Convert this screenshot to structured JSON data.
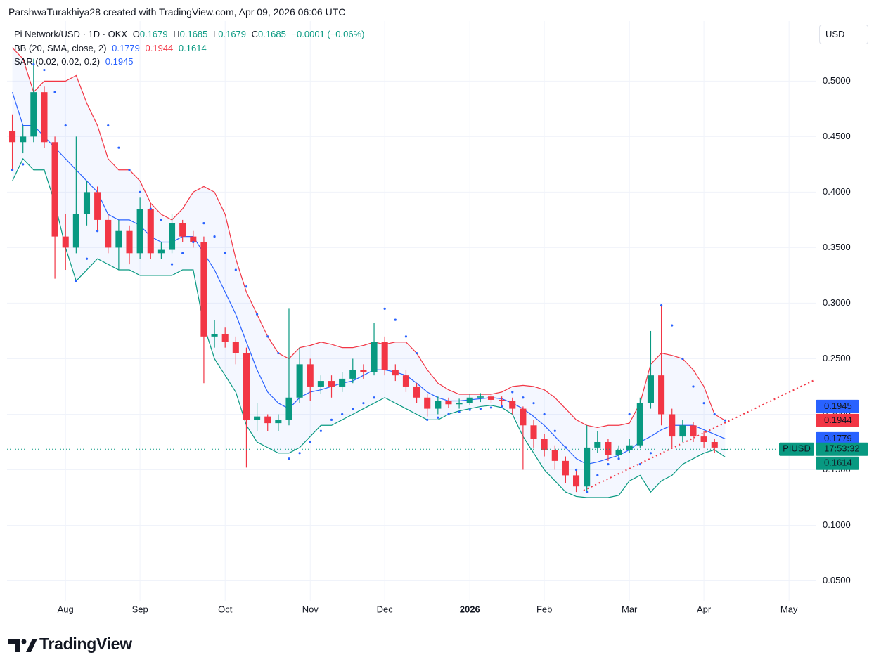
{
  "header": "ParshwaTurakhiya28 created with TradingView.com, Apr 09, 2026 06:06 UTC",
  "brand": "TradingView",
  "chart_data": {
    "type": "candlestick",
    "symbol": "Pi Network/USD · 1D · OKX",
    "ohlc_letters": [
      "O",
      "H",
      "L",
      "C"
    ],
    "change": "−0.0001 (−0.06%)",
    "currency": "USD",
    "ticker": "PIUSD",
    "countdown": "17:53:32",
    "categories": [
      null,
      null,
      null,
      null,
      null,
      "Aug",
      null,
      null,
      null,
      null,
      null,
      null,
      "Sep",
      null,
      null,
      null,
      null,
      null,
      null,
      null,
      "Oct",
      null,
      null,
      null,
      null,
      null,
      null,
      null,
      "Nov",
      null,
      null,
      null,
      null,
      null,
      null,
      "Dec",
      null,
      null,
      null,
      null,
      null,
      null,
      null,
      "2026",
      null,
      null,
      null,
      null,
      null,
      null,
      "Feb",
      null,
      null,
      null,
      null,
      null,
      null,
      null,
      "Mar",
      null,
      null,
      null,
      null,
      null,
      null,
      "Apr",
      null,
      null,
      null,
      null,
      null,
      null,
      null,
      "May",
      null,
      null
    ],
    "candles": {
      "up_color": "#089981",
      "down_color": "#f23645",
      "values": [
        [
          0.455,
          0.47,
          0.42,
          0.445
        ],
        [
          0.445,
          0.46,
          0.435,
          0.45
        ],
        [
          0.45,
          0.52,
          0.445,
          0.49
        ],
        [
          0.49,
          0.495,
          0.44,
          0.445
        ],
        [
          0.445,
          0.45,
          0.322,
          0.36
        ],
        [
          0.36,
          0.38,
          0.33,
          0.35
        ],
        [
          0.35,
          0.45,
          0.345,
          0.38
        ],
        [
          0.38,
          0.41,
          0.37,
          0.4
        ],
        [
          0.4,
          0.405,
          0.365,
          0.375
        ],
        [
          0.375,
          0.38,
          0.345,
          0.35
        ],
        [
          0.35,
          0.375,
          0.33,
          0.365
        ],
        [
          0.365,
          0.37,
          0.335,
          0.345
        ],
        [
          0.345,
          0.395,
          0.34,
          0.385
        ],
        [
          0.385,
          0.39,
          0.34,
          0.345
        ],
        [
          0.345,
          0.355,
          0.34,
          0.348
        ],
        [
          0.348,
          0.38,
          0.345,
          0.372
        ],
        [
          0.372,
          0.375,
          0.355,
          0.36
        ],
        [
          0.36,
          0.365,
          0.35,
          0.355
        ],
        [
          0.355,
          0.36,
          0.228,
          0.27
        ],
        [
          0.27,
          0.285,
          0.26,
          0.272
        ],
        [
          0.272,
          0.278,
          0.26,
          0.265
        ],
        [
          0.265,
          0.27,
          0.245,
          0.255
        ],
        [
          0.255,
          0.26,
          0.152,
          0.195
        ],
        [
          0.195,
          0.21,
          0.185,
          0.198
        ],
        [
          0.198,
          0.2,
          0.185,
          0.192
        ],
        [
          0.192,
          0.2,
          0.185,
          0.195
        ],
        [
          0.195,
          0.295,
          0.19,
          0.215
        ],
        [
          0.215,
          0.26,
          0.21,
          0.245
        ],
        [
          0.245,
          0.25,
          0.212,
          0.225
        ],
        [
          0.225,
          0.235,
          0.218,
          0.23
        ],
        [
          0.23,
          0.235,
          0.215,
          0.225
        ],
        [
          0.225,
          0.238,
          0.22,
          0.232
        ],
        [
          0.232,
          0.25,
          0.228,
          0.24
        ],
        [
          0.24,
          0.245,
          0.232,
          0.238
        ],
        [
          0.238,
          0.282,
          0.235,
          0.265
        ],
        [
          0.265,
          0.27,
          0.235,
          0.24
        ],
        [
          0.24,
          0.245,
          0.23,
          0.235
        ],
        [
          0.235,
          0.24,
          0.22,
          0.225
        ],
        [
          0.225,
          0.228,
          0.21,
          0.215
        ],
        [
          0.215,
          0.218,
          0.198,
          0.205
        ],
        [
          0.205,
          0.216,
          0.2,
          0.212
        ],
        [
          0.212,
          0.215,
          0.206,
          0.209
        ],
        [
          0.209,
          0.214,
          0.205,
          0.21
        ],
        [
          0.21,
          0.218,
          0.208,
          0.215
        ],
        [
          0.215,
          0.219,
          0.211,
          0.216
        ],
        [
          0.216,
          0.218,
          0.21,
          0.213
        ],
        [
          0.213,
          0.216,
          0.208,
          0.212
        ],
        [
          0.212,
          0.215,
          0.2,
          0.205
        ],
        [
          0.205,
          0.207,
          0.15,
          0.19
        ],
        [
          0.19,
          0.195,
          0.17,
          0.178
        ],
        [
          0.178,
          0.182,
          0.162,
          0.168
        ],
        [
          0.168,
          0.172,
          0.15,
          0.158
        ],
        [
          0.158,
          0.162,
          0.138,
          0.145
        ],
        [
          0.145,
          0.15,
          0.13,
          0.135
        ],
        [
          0.135,
          0.19,
          0.13,
          0.17
        ],
        [
          0.17,
          0.185,
          0.165,
          0.175
        ],
        [
          0.175,
          0.178,
          0.158,
          0.163
        ],
        [
          0.163,
          0.172,
          0.16,
          0.168
        ],
        [
          0.168,
          0.178,
          0.165,
          0.172
        ],
        [
          0.172,
          0.215,
          0.17,
          0.21
        ],
        [
          0.21,
          0.275,
          0.205,
          0.235
        ],
        [
          0.235,
          0.298,
          0.19,
          0.2
        ],
        [
          0.2,
          0.205,
          0.17,
          0.18
        ],
        [
          0.18,
          0.195,
          0.175,
          0.19
        ],
        [
          0.19,
          0.193,
          0.175,
          0.18
        ],
        [
          0.18,
          0.185,
          0.17,
          0.175
        ],
        [
          0.175,
          0.178,
          0.165,
          0.17
        ],
        [
          0.1679,
          0.1685,
          0.1679,
          0.1685
        ],
        null,
        null,
        null,
        null,
        null,
        null,
        null,
        null
      ]
    },
    "bb": {
      "label": "BB (20, SMA, close, 2)",
      "upper_color": "#f23645",
      "basis_color": "#2962ff",
      "lower_color": "#089981",
      "fill": "#2962ff",
      "upper": [
        0.53,
        0.52,
        0.49,
        0.5,
        0.5,
        0.5,
        0.505,
        0.48,
        0.46,
        0.43,
        0.42,
        0.42,
        0.41,
        0.39,
        0.38,
        0.375,
        0.385,
        0.4,
        0.405,
        0.4,
        0.38,
        0.34,
        0.31,
        0.29,
        0.27,
        0.255,
        0.25,
        0.26,
        0.262,
        0.265,
        0.263,
        0.26,
        0.26,
        0.262,
        0.265,
        0.263,
        0.265,
        0.265,
        0.255,
        0.24,
        0.228,
        0.222,
        0.218,
        0.218,
        0.218,
        0.218,
        0.22,
        0.225,
        0.226,
        0.225,
        0.222,
        0.215,
        0.205,
        0.195,
        0.19,
        0.188,
        0.19,
        0.19,
        0.192,
        0.21,
        0.245,
        0.255,
        0.253,
        0.25,
        0.24,
        0.225,
        0.2,
        0.1944,
        null,
        null,
        null,
        null,
        null,
        null,
        null,
        null
      ],
      "basis": [
        0.49,
        0.46,
        0.46,
        0.45,
        0.44,
        0.43,
        0.42,
        0.41,
        0.4,
        0.38,
        0.375,
        0.375,
        0.37,
        0.36,
        0.355,
        0.355,
        0.36,
        0.36,
        0.345,
        0.33,
        0.31,
        0.29,
        0.265,
        0.24,
        0.22,
        0.21,
        0.205,
        0.215,
        0.22,
        0.222,
        0.225,
        0.228,
        0.23,
        0.235,
        0.24,
        0.24,
        0.238,
        0.235,
        0.228,
        0.22,
        0.215,
        0.212,
        0.212,
        0.213,
        0.214,
        0.215,
        0.214,
        0.21,
        0.205,
        0.198,
        0.19,
        0.18,
        0.17,
        0.16,
        0.155,
        0.157,
        0.16,
        0.163,
        0.168,
        0.175,
        0.18,
        0.186,
        0.19,
        0.19,
        0.19,
        0.186,
        0.182,
        0.1779,
        null,
        null,
        null,
        null,
        null,
        null,
        null,
        null
      ],
      "lower": [
        0.41,
        0.43,
        0.42,
        0.42,
        0.39,
        0.35,
        0.32,
        0.33,
        0.34,
        0.335,
        0.33,
        0.33,
        0.325,
        0.325,
        0.325,
        0.325,
        0.33,
        0.33,
        0.28,
        0.25,
        0.235,
        0.22,
        0.19,
        0.175,
        0.17,
        0.165,
        0.165,
        0.17,
        0.18,
        0.19,
        0.19,
        0.195,
        0.2,
        0.205,
        0.21,
        0.215,
        0.21,
        0.205,
        0.2,
        0.195,
        0.195,
        0.2,
        0.203,
        0.205,
        0.207,
        0.208,
        0.206,
        0.2,
        0.18,
        0.165,
        0.15,
        0.14,
        0.13,
        0.126,
        0.125,
        0.125,
        0.125,
        0.127,
        0.14,
        0.145,
        0.13,
        0.14,
        0.145,
        0.155,
        0.16,
        0.165,
        0.168,
        0.1614,
        null,
        null,
        null,
        null,
        null,
        null,
        null,
        null
      ]
    },
    "sar": {
      "label": "SAR (0.02, 0.02, 0.2)",
      "color": "#2962ff",
      "values": [
        0.42,
        0.425,
        0.515,
        0.51,
        0.49,
        0.46,
        0.32,
        0.34,
        0.365,
        0.46,
        0.44,
        0.42,
        0.4,
        0.385,
        0.375,
        0.335,
        0.345,
        0.355,
        0.372,
        0.36,
        0.345,
        0.33,
        0.315,
        0.29,
        0.27,
        0.255,
        0.16,
        0.165,
        0.175,
        0.185,
        0.195,
        0.2,
        0.205,
        0.21,
        0.215,
        0.295,
        0.285,
        0.27,
        0.255,
        0.195,
        0.197,
        0.2,
        0.202,
        0.204,
        0.205,
        0.206,
        0.207,
        0.22,
        0.215,
        0.21,
        0.2,
        0.185,
        0.17,
        0.15,
        0.13,
        0.145,
        0.155,
        0.16,
        0.2,
        0.155,
        0.165,
        0.298,
        0.28,
        0.25,
        0.225,
        0.21,
        0.2,
        0.1945,
        null,
        null,
        null,
        null,
        null,
        null,
        null,
        null
      ]
    },
    "ylim": [
      0.032,
      0.554
    ],
    "yticks": [
      {
        "value": 0.05,
        "label": "0.0500"
      },
      {
        "value": 0.1,
        "label": "0.1000"
      },
      {
        "value": 0.15,
        "label": "0.1500"
      },
      {
        "value": 0.2,
        "label": "0.2000"
      },
      {
        "value": 0.25,
        "label": "0.2500"
      },
      {
        "value": 0.3,
        "label": "0.3000"
      },
      {
        "value": 0.35,
        "label": "0.3500"
      },
      {
        "value": 0.4,
        "label": "0.4000"
      },
      {
        "value": 0.45,
        "label": "0.4500"
      },
      {
        "value": 0.5,
        "label": "0.5000"
      }
    ],
    "grid": true
  }
}
